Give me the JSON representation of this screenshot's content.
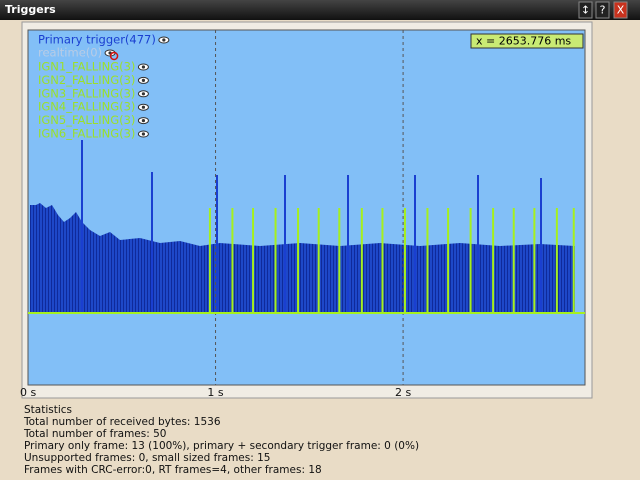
{
  "window": {
    "title": "Triggers",
    "buttons": [
      "↕",
      "?",
      "X"
    ]
  },
  "plot": {
    "legend": [
      {
        "label": "Primary trigger(477)",
        "color": "#1a3fd0"
      },
      {
        "label": "realtime(0)",
        "color": "#b8cce6"
      },
      {
        "label": "IGN1_FALLING(3)",
        "color": "#9be02a"
      },
      {
        "label": "IGN2_FALLING(3)",
        "color": "#9be02a"
      },
      {
        "label": "IGN3_FALLING(3)",
        "color": "#9be02a"
      },
      {
        "label": "IGN4_FALLING(3)",
        "color": "#9be02a"
      },
      {
        "label": "IGN5_FALLING(3)",
        "color": "#9be02a"
      },
      {
        "label": "IGN6_FALLING(3)",
        "color": "#9be02a"
      }
    ],
    "cursor": "x = 2653.776 ms",
    "xlim": [
      0,
      2.97
    ],
    "xticks": [
      {
        "value": 0,
        "label": "0 s"
      },
      {
        "value": 1,
        "label": "1 s"
      },
      {
        "value": 2,
        "label": "2 s"
      }
    ],
    "pulses": [
      0.97,
      1.09,
      1.2,
      1.32,
      1.44,
      1.55,
      1.66,
      1.78,
      1.89,
      2.01,
      2.13,
      2.24,
      2.36,
      2.48,
      2.59,
      2.7,
      2.82,
      2.91
    ],
    "pulse_color": "#a6f01e"
  },
  "statistics": {
    "title": "Statistics",
    "lines": [
      "Total number of received bytes: 1536",
      "Total number of frames: 50",
      "Primary only frame: 13 (100%), primary + secondary trigger frame: 0 (0%)",
      "Unsupported frames: 0, small sized frames: 15",
      "Frames with CRC-error:0, RT frames=4, other frames: 18"
    ]
  }
}
